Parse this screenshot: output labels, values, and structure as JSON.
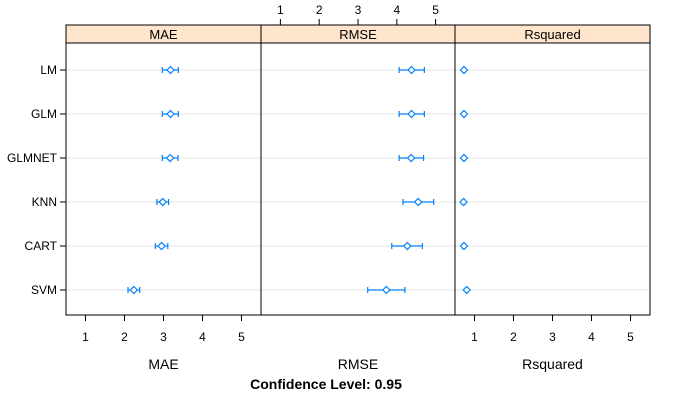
{
  "chart_data": {
    "type": "dotplot",
    "categories": [
      "LM",
      "GLM",
      "GLMNET",
      "KNN",
      "CART",
      "SVM"
    ],
    "ticks": [
      1,
      2,
      3,
      4,
      5
    ],
    "xlim": [
      0.5,
      5.5
    ],
    "colors": {
      "point": "#0080ff",
      "strip": "#ffe5cc",
      "grid": "#e6e6e6"
    },
    "panels": [
      {
        "name": "MAE",
        "xlabel": "MAE",
        "points": [
          {
            "label": "LM",
            "value": 3.18,
            "lower": 2.97,
            "upper": 3.38
          },
          {
            "label": "GLM",
            "value": 3.18,
            "lower": 2.97,
            "upper": 3.38
          },
          {
            "label": "GLMNET",
            "value": 3.17,
            "lower": 2.97,
            "upper": 3.37
          },
          {
            "label": "KNN",
            "value": 2.98,
            "lower": 2.83,
            "upper": 3.13
          },
          {
            "label": "CART",
            "value": 2.95,
            "lower": 2.79,
            "upper": 3.11
          },
          {
            "label": "SVM",
            "value": 2.24,
            "lower": 2.09,
            "upper": 2.39
          }
        ]
      },
      {
        "name": "RMSE",
        "xlabel": "RMSE",
        "points": [
          {
            "label": "LM",
            "value": 4.38,
            "lower": 4.06,
            "upper": 4.71
          },
          {
            "label": "GLM",
            "value": 4.38,
            "lower": 4.06,
            "upper": 4.71
          },
          {
            "label": "GLMNET",
            "value": 4.37,
            "lower": 4.06,
            "upper": 4.69
          },
          {
            "label": "KNN",
            "value": 4.55,
            "lower": 4.16,
            "upper": 4.95
          },
          {
            "label": "CART",
            "value": 4.27,
            "lower": 3.87,
            "upper": 4.66
          },
          {
            "label": "SVM",
            "value": 3.73,
            "lower": 3.25,
            "upper": 4.21
          }
        ]
      },
      {
        "name": "Rsquared",
        "xlabel": "Rsquared",
        "points": [
          {
            "label": "LM",
            "value": 0.73,
            "lower": 0.7,
            "upper": 0.76
          },
          {
            "label": "GLM",
            "value": 0.73,
            "lower": 0.7,
            "upper": 0.76
          },
          {
            "label": "GLMNET",
            "value": 0.73,
            "lower": 0.7,
            "upper": 0.76
          },
          {
            "label": "KNN",
            "value": 0.72,
            "lower": 0.68,
            "upper": 0.75
          },
          {
            "label": "CART",
            "value": 0.73,
            "lower": 0.69,
            "upper": 0.76
          },
          {
            "label": "SVM",
            "value": 0.8,
            "lower": 0.77,
            "upper": 0.83
          }
        ]
      }
    ],
    "footer": "Confidence Level: 0.95"
  }
}
